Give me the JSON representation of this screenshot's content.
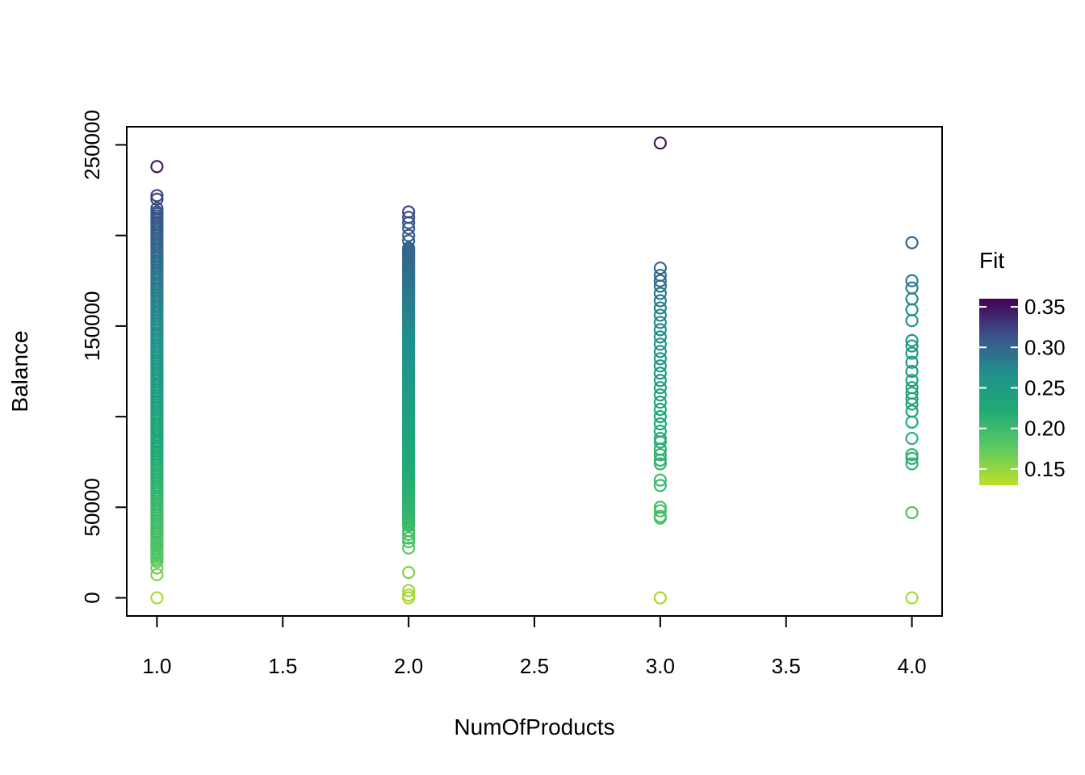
{
  "chart_data": {
    "type": "scatter",
    "title": "",
    "xlabel": "NumOfProducts",
    "ylabel": "Balance",
    "xlim": [
      0.88,
      4.12
    ],
    "ylim": [
      -10000,
      260000
    ],
    "x_ticks": [
      1.0,
      1.5,
      2.0,
      2.5,
      3.0,
      3.5,
      4.0
    ],
    "x_tick_labels": [
      "1.0",
      "1.5",
      "2.0",
      "2.5",
      "3.0",
      "3.5",
      "4.0"
    ],
    "y_ticks": [
      0,
      50000,
      100000,
      150000,
      200000,
      250000
    ],
    "y_tick_labels": [
      "0",
      "50000",
      "",
      "150000",
      "",
      "250000"
    ],
    "grid": false,
    "legend": {
      "title": "Fit",
      "placement": "right",
      "type": "colorbar",
      "range": [
        0.13,
        0.36
      ],
      "ticks": [
        0.35,
        0.3,
        0.25,
        0.2,
        0.15
      ],
      "tick_labels": [
        "0.35",
        "0.30",
        "0.25",
        "0.20",
        "0.15"
      ]
    },
    "colormap": [
      "#440154",
      "#3b528b",
      "#21908d",
      "#1faa75",
      "#5dc963",
      "#bddf26"
    ],
    "series": [
      {
        "x": 1,
        "dense_range": [
          20000,
          212000
        ],
        "values": [
          0,
          12800,
          16500,
          24000,
          25500,
          29000,
          30500,
          33000,
          36000,
          213000,
          215000,
          220000,
          222000,
          238000
        ],
        "fit": [
          0.14,
          0.16,
          0.165,
          0.18,
          0.18,
          0.185,
          0.19,
          0.19,
          0.195,
          0.31,
          0.315,
          0.32,
          0.325,
          0.345
        ]
      },
      {
        "x": 2,
        "dense_range": [
          40000,
          193000
        ],
        "values": [
          0,
          1500,
          4000,
          14000,
          27500,
          31000,
          33000,
          35000,
          37000,
          40000,
          197000,
          200000,
          204000,
          207000,
          210000,
          213000
        ],
        "fit": [
          0.14,
          0.14,
          0.145,
          0.16,
          0.18,
          0.185,
          0.19,
          0.19,
          0.195,
          0.2,
          0.3,
          0.305,
          0.31,
          0.31,
          0.315,
          0.32
        ],
        "dense_fit": [
          0.2,
          0.3
        ]
      },
      {
        "x": 3,
        "values": [
          0,
          0,
          44000,
          45000,
          48000,
          50000,
          62000,
          65000,
          74000,
          76000,
          79000,
          82000,
          86000,
          88000,
          92000,
          96000,
          100000,
          104000,
          108000,
          112000,
          116000,
          120000,
          124000,
          128000,
          132000,
          136000,
          140000,
          144000,
          148000,
          152000,
          156000,
          160000,
          164000,
          168000,
          172000,
          175000,
          178000,
          182000,
          251000
        ],
        "fit": [
          0.14,
          0.14,
          0.19,
          0.19,
          0.19,
          0.195,
          0.2,
          0.2,
          0.205,
          0.21,
          0.21,
          0.215,
          0.215,
          0.22,
          0.22,
          0.225,
          0.23,
          0.23,
          0.235,
          0.24,
          0.24,
          0.245,
          0.25,
          0.25,
          0.255,
          0.26,
          0.26,
          0.265,
          0.27,
          0.27,
          0.275,
          0.28,
          0.28,
          0.285,
          0.29,
          0.29,
          0.295,
          0.3,
          0.35
        ]
      },
      {
        "x": 4,
        "values": [
          0,
          47000,
          74000,
          77000,
          79000,
          88000,
          97000,
          103000,
          107000,
          110000,
          113000,
          116000,
          120000,
          125000,
          130000,
          135000,
          139000,
          142000,
          153000,
          159000,
          165000,
          171000,
          175000,
          196000
        ],
        "fit": [
          0.14,
          0.19,
          0.205,
          0.21,
          0.21,
          0.215,
          0.22,
          0.225,
          0.225,
          0.23,
          0.23,
          0.235,
          0.24,
          0.245,
          0.25,
          0.255,
          0.255,
          0.26,
          0.265,
          0.27,
          0.275,
          0.28,
          0.28,
          0.3
        ]
      }
    ]
  }
}
